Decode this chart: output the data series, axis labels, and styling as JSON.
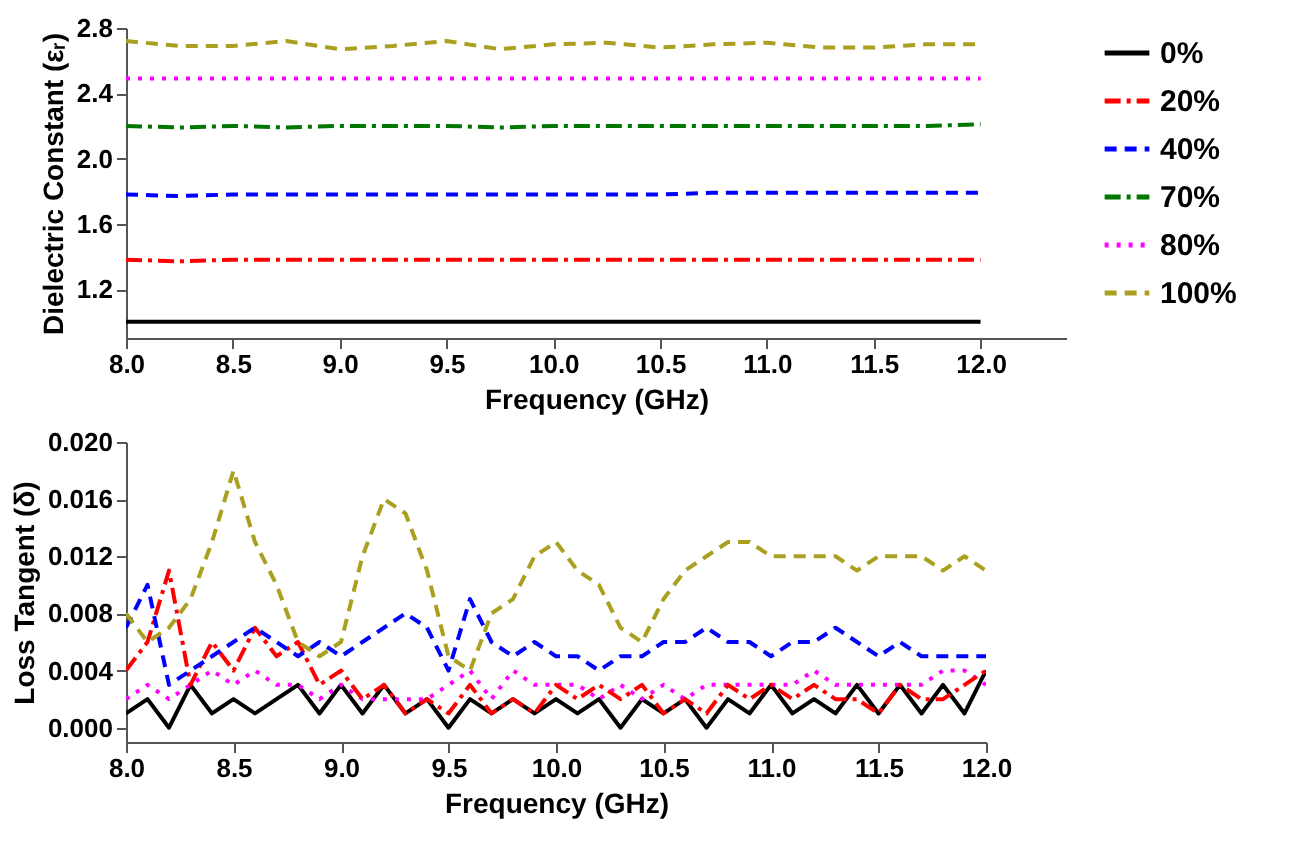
{
  "chart_data": [
    {
      "type": "line",
      "xlabel": "Frequency (GHz)",
      "ylabel": "Dielectric Constant (εᵣ)",
      "legend": "right",
      "grid": false,
      "x": [
        8.0,
        8.25,
        8.5,
        8.75,
        9.0,
        9.25,
        9.5,
        9.75,
        10.0,
        10.25,
        10.5,
        10.75,
        11.0,
        11.25,
        11.5,
        11.75,
        12.0
      ],
      "xlim": [
        8.0,
        12.4
      ],
      "ylim": [
        0.9,
        2.8
      ],
      "xticks": [
        {
          "value": 8.0,
          "label": "8.0"
        },
        {
          "value": 8.5,
          "label": "8.5"
        },
        {
          "value": 9.0,
          "label": "9.0"
        },
        {
          "value": 9.5,
          "label": "9.5"
        },
        {
          "value": 10.0,
          "label": "10.0"
        },
        {
          "value": 10.5,
          "label": "10.5"
        },
        {
          "value": 11.0,
          "label": "11.0"
        },
        {
          "value": 11.5,
          "label": "11.5"
        },
        {
          "value": 12.0,
          "label": "12.0"
        }
      ],
      "yticks": [
        1.2,
        1.6,
        {
          "value": 2.0,
          "label": "2.0"
        },
        2.4,
        2.8
      ],
      "series": [
        {
          "name": "0%",
          "color": "#000000",
          "line_style": "solid",
          "values": [
            1.0,
            1.0,
            1.0,
            1.0,
            1.0,
            1.0,
            1.0,
            1.0,
            1.0,
            1.0,
            1.0,
            1.0,
            1.0,
            1.0,
            1.0,
            1.0,
            1.0
          ]
        },
        {
          "name": "20%",
          "color": "#ff0000",
          "line_style": "dashdot",
          "values": [
            1.38,
            1.37,
            1.38,
            1.38,
            1.38,
            1.38,
            1.38,
            1.38,
            1.38,
            1.38,
            1.38,
            1.38,
            1.38,
            1.38,
            1.38,
            1.38,
            1.38
          ]
        },
        {
          "name": "40%",
          "color": "#0000ff",
          "line_style": "dashed",
          "values": [
            1.78,
            1.77,
            1.78,
            1.78,
            1.78,
            1.78,
            1.78,
            1.78,
            1.78,
            1.78,
            1.78,
            1.79,
            1.79,
            1.79,
            1.79,
            1.79,
            1.79
          ]
        },
        {
          "name": "70%",
          "color": "#007700",
          "line_style": "dashdot",
          "values": [
            2.2,
            2.19,
            2.2,
            2.19,
            2.2,
            2.2,
            2.2,
            2.19,
            2.2,
            2.2,
            2.2,
            2.2,
            2.2,
            2.2,
            2.2,
            2.2,
            2.21
          ]
        },
        {
          "name": "80%",
          "color": "#ff00ff",
          "line_style": "dotted",
          "values": [
            2.49,
            2.49,
            2.49,
            2.49,
            2.49,
            2.49,
            2.49,
            2.49,
            2.49,
            2.49,
            2.49,
            2.49,
            2.49,
            2.49,
            2.49,
            2.49,
            2.49
          ]
        },
        {
          "name": "100%",
          "color": "#aaa020",
          "line_style": "dashed",
          "values": [
            2.72,
            2.69,
            2.69,
            2.72,
            2.67,
            2.69,
            2.72,
            2.67,
            2.7,
            2.71,
            2.68,
            2.7,
            2.71,
            2.68,
            2.68,
            2.7,
            2.7
          ]
        }
      ]
    },
    {
      "type": "line",
      "xlabel": "Frequency (GHz)",
      "ylabel": "Loss Tangent (δ)",
      "legend": false,
      "grid": false,
      "x": [
        8.0,
        8.1,
        8.2,
        8.3,
        8.4,
        8.5,
        8.6,
        8.7,
        8.8,
        8.9,
        9.0,
        9.1,
        9.2,
        9.3,
        9.4,
        9.5,
        9.6,
        9.7,
        9.8,
        9.9,
        10.0,
        10.1,
        10.2,
        10.3,
        10.4,
        10.5,
        10.6,
        10.7,
        10.8,
        10.9,
        11.0,
        11.1,
        11.2,
        11.3,
        11.4,
        11.5,
        11.6,
        11.7,
        11.8,
        11.9,
        12.0
      ],
      "xlim": [
        8.0,
        12.0
      ],
      "ylim": [
        -0.001,
        0.02
      ],
      "xticks": [
        {
          "value": 8.0,
          "label": "8.0"
        },
        {
          "value": 8.5,
          "label": "8.5"
        },
        {
          "value": 9.0,
          "label": "9.0"
        },
        {
          "value": 9.5,
          "label": "9.5"
        },
        {
          "value": 10.0,
          "label": "10.0"
        },
        {
          "value": 10.5,
          "label": "10.5"
        },
        {
          "value": 11.0,
          "label": "11.0"
        },
        {
          "value": 11.5,
          "label": "11.5"
        },
        {
          "value": 12.0,
          "label": "12.0"
        }
      ],
      "yticks": [
        {
          "value": 0.0,
          "label": "0.000"
        },
        0.004,
        0.008,
        0.012,
        0.016,
        {
          "value": 0.02,
          "label": "0.020"
        }
      ],
      "series": [
        {
          "color": "#000000",
          "line_style": "solid",
          "values": [
            0.001,
            0.002,
            0.0,
            0.003,
            0.001,
            0.002,
            0.001,
            0.002,
            0.003,
            0.001,
            0.003,
            0.001,
            0.003,
            0.001,
            0.002,
            0.0,
            0.002,
            0.001,
            0.002,
            0.001,
            0.002,
            0.001,
            0.002,
            0.0,
            0.002,
            0.001,
            0.002,
            0.0,
            0.002,
            0.001,
            0.003,
            0.001,
            0.002,
            0.001,
            0.003,
            0.001,
            0.003,
            0.001,
            0.003,
            0.001,
            0.004
          ]
        },
        {
          "color": "#ff00ff",
          "line_style": "dotted",
          "values": [
            0.002,
            0.003,
            0.002,
            0.003,
            0.004,
            0.003,
            0.004,
            0.003,
            0.003,
            0.002,
            0.003,
            0.002,
            0.002,
            0.002,
            0.002,
            0.003,
            0.004,
            0.002,
            0.004,
            0.003,
            0.003,
            0.003,
            0.002,
            0.003,
            0.002,
            0.003,
            0.002,
            0.003,
            0.003,
            0.003,
            0.003,
            0.003,
            0.004,
            0.003,
            0.003,
            0.003,
            0.003,
            0.003,
            0.004,
            0.004,
            0.003
          ]
        },
        {
          "color": "#ff0000",
          "line_style": "dashdot",
          "values": [
            0.004,
            0.006,
            0.011,
            0.003,
            0.006,
            0.004,
            0.007,
            0.005,
            0.006,
            0.003,
            0.004,
            0.002,
            0.003,
            0.001,
            0.002,
            0.001,
            0.003,
            0.001,
            0.002,
            0.001,
            0.003,
            0.002,
            0.003,
            0.002,
            0.003,
            0.001,
            0.002,
            0.001,
            0.003,
            0.002,
            0.003,
            0.002,
            0.003,
            0.002,
            0.002,
            0.001,
            0.003,
            0.002,
            0.002,
            0.003,
            0.004
          ]
        },
        {
          "color": "#0000ff",
          "line_style": "dashed",
          "values": [
            0.007,
            0.01,
            0.003,
            0.004,
            0.005,
            0.006,
            0.007,
            0.006,
            0.005,
            0.006,
            0.005,
            0.006,
            0.007,
            0.008,
            0.007,
            0.004,
            0.009,
            0.006,
            0.005,
            0.006,
            0.005,
            0.005,
            0.004,
            0.005,
            0.005,
            0.006,
            0.006,
            0.007,
            0.006,
            0.006,
            0.005,
            0.006,
            0.006,
            0.007,
            0.006,
            0.005,
            0.006,
            0.005,
            0.005,
            0.005,
            0.005
          ]
        },
        {
          "color": "#aaa020",
          "line_style": "dashed",
          "values": [
            0.008,
            0.006,
            0.007,
            0.009,
            0.013,
            0.018,
            0.013,
            0.01,
            0.006,
            0.005,
            0.006,
            0.012,
            0.016,
            0.015,
            0.011,
            0.005,
            0.004,
            0.008,
            0.009,
            0.012,
            0.013,
            0.011,
            0.01,
            0.007,
            0.006,
            0.009,
            0.011,
            0.012,
            0.013,
            0.013,
            0.012,
            0.012,
            0.012,
            0.012,
            0.011,
            0.012,
            0.012,
            0.012,
            0.011,
            0.012,
            0.011
          ]
        }
      ]
    }
  ]
}
